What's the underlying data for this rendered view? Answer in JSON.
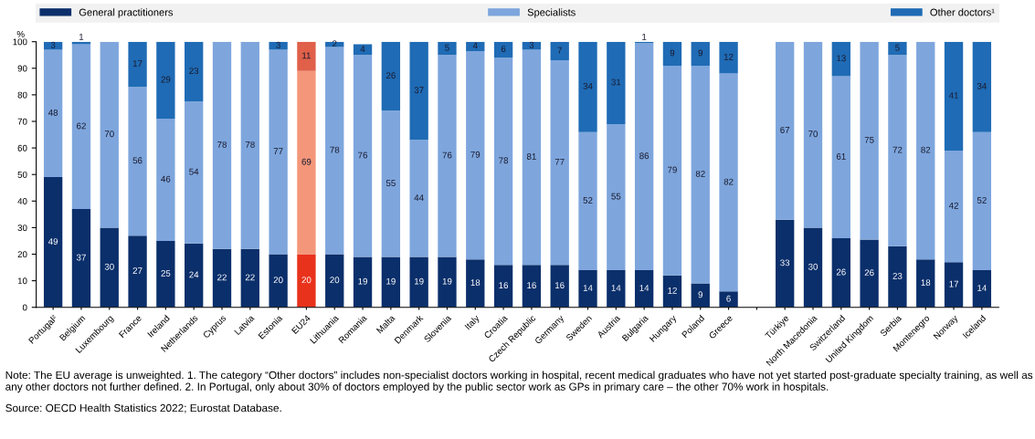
{
  "chart_data": {
    "type": "bar",
    "stacked": true,
    "ylabel": "%",
    "ylim": [
      0,
      100
    ],
    "yticks": [
      0,
      10,
      20,
      30,
      40,
      50,
      60,
      70,
      80,
      90,
      100
    ],
    "grid": false,
    "legend": "top",
    "categories": [
      "Portugal²",
      "Belgium",
      "Luxembourg",
      "France",
      "Ireland",
      "Netherlands",
      "Cyprus",
      "Latvia",
      "Estonia",
      "EU24",
      "Lithuania",
      "Romania",
      "Malta",
      "Denmark",
      "Slovenia",
      "Italy",
      "Croatia",
      "Czech Republic",
      "Germany",
      "Sweden",
      "Austria",
      "Bulgaria",
      "Hungary",
      "Poland",
      "Greece",
      null,
      "Türkiye",
      "North Macedonia",
      "Switzerland",
      "United Kingdom",
      "Serbia",
      "Montenegro",
      "Norway",
      "Iceland"
    ],
    "series": [
      {
        "name": "General practitioners",
        "color": "#0b2f6b",
        "colors": [
          "#0b2f6b",
          "#0b2f6b",
          "#0b2f6b",
          "#0b2f6b",
          "#0b2f6b",
          "#0b2f6b",
          "#0b2f6b",
          "#0b2f6b",
          "#0b2f6b",
          "#e8321c",
          "#0b2f6b",
          "#0b2f6b",
          "#0b2f6b",
          "#0b2f6b",
          "#0b2f6b",
          "#0b2f6b",
          "#0b2f6b",
          "#0b2f6b",
          "#0b2f6b",
          "#0b2f6b",
          "#0b2f6b",
          "#0b2f6b",
          "#0b2f6b",
          "#0b2f6b",
          "#0b2f6b",
          "#0b2f6b",
          "#0b2f6b",
          "#0b2f6b",
          "#0b2f6b",
          "#0b2f6b",
          "#0b2f6b",
          "#0b2f6b",
          "#0b2f6b",
          "#0b2f6b"
        ],
        "values": [
          49,
          37,
          30,
          27,
          25,
          24,
          22,
          22,
          20,
          20,
          20,
          19,
          19,
          19,
          19,
          18,
          16,
          16,
          16,
          14,
          14,
          14,
          12,
          9,
          6,
          null,
          33,
          30,
          26,
          25.5,
          23,
          18,
          17,
          14
        ],
        "value_labels": [
          "49",
          "37",
          "30",
          "27",
          "25",
          "24",
          "22",
          "22",
          "20",
          "20",
          "20",
          "19",
          "19",
          "19",
          "19",
          "18",
          "16",
          "16",
          "16",
          "14",
          "14",
          "14",
          "12",
          "9",
          "6",
          null,
          "33",
          "30",
          "26",
          "26",
          "23",
          "18",
          "17",
          "14"
        ]
      },
      {
        "name": "Specialists",
        "color": "#7ea6dd",
        "colors": [
          "#7ea6dd",
          "#7ea6dd",
          "#7ea6dd",
          "#7ea6dd",
          "#7ea6dd",
          "#7ea6dd",
          "#7ea6dd",
          "#7ea6dd",
          "#7ea6dd",
          "#f4967a",
          "#7ea6dd",
          "#7ea6dd",
          "#7ea6dd",
          "#7ea6dd",
          "#7ea6dd",
          "#7ea6dd",
          "#7ea6dd",
          "#7ea6dd",
          "#7ea6dd",
          "#7ea6dd",
          "#7ea6dd",
          "#7ea6dd",
          "#7ea6dd",
          "#7ea6dd",
          "#7ea6dd",
          "#7ea6dd",
          "#7ea6dd",
          "#7ea6dd",
          "#7ea6dd",
          "#7ea6dd",
          "#7ea6dd",
          "#7ea6dd",
          "#7ea6dd",
          "#7ea6dd"
        ],
        "values": [
          48,
          62,
          70,
          56,
          46,
          53.5,
          78,
          78,
          77,
          69,
          78,
          76,
          55,
          44,
          76,
          78.5,
          78,
          81,
          77,
          52,
          55,
          85.5,
          79,
          82,
          82,
          null,
          67,
          70,
          61,
          74.5,
          72,
          82,
          42,
          52
        ],
        "value_labels": [
          "48",
          "62",
          "70",
          "56",
          "46",
          "54",
          "78",
          "78",
          "77",
          "69",
          "78",
          "76",
          "55",
          "44",
          "76",
          "79",
          "78",
          "81",
          "77",
          "52",
          "55",
          "86",
          "79",
          "82",
          "82",
          null,
          "67",
          "70",
          "61",
          "75",
          "72",
          "82",
          "42",
          "52"
        ]
      },
      {
        "name": "Other doctors¹",
        "color": "#1f6bb5",
        "colors": [
          "#1f6bb5",
          "#1f6bb5",
          "#1f6bb5",
          "#1f6bb5",
          "#1f6bb5",
          "#1f6bb5",
          "#1f6bb5",
          "#1f6bb5",
          "#1f6bb5",
          "#e0604a",
          "#1f6bb5",
          "#1f6bb5",
          "#1f6bb5",
          "#1f6bb5",
          "#1f6bb5",
          "#1f6bb5",
          "#1f6bb5",
          "#1f6bb5",
          "#1f6bb5",
          "#1f6bb5",
          "#1f6bb5",
          "#1f6bb5",
          "#1f6bb5",
          "#1f6bb5",
          "#1f6bb5",
          "#1f6bb5",
          "#1f6bb5",
          "#1f6bb5",
          "#1f6bb5",
          "#1f6bb5",
          "#1f6bb5",
          "#1f6bb5",
          "#1f6bb5",
          "#1f6bb5"
        ],
        "values": [
          3,
          1,
          0,
          17,
          29,
          22.5,
          0,
          0,
          3,
          11,
          2,
          4,
          26,
          37,
          5,
          3.5,
          6,
          3,
          7,
          34,
          31,
          0.5,
          9,
          9,
          12,
          null,
          0,
          0,
          13,
          0,
          5,
          0,
          41,
          34
        ],
        "value_labels": [
          "3",
          "1",
          null,
          "17",
          "29",
          "23",
          null,
          null,
          "3",
          "11",
          "2",
          "4",
          "26",
          "37",
          "5",
          "4",
          "6",
          "3",
          "7",
          "34",
          "31",
          "1",
          "9",
          "9",
          "12",
          null,
          null,
          null,
          "13",
          null,
          "5",
          null,
          "41",
          "34"
        ]
      }
    ],
    "annotations": [
      "Note: The EU average is unweighted. 1. The category “Other doctors” includes non-specialist doctors working in hospital, recent medical graduates who have not yet started post-graduate specialty training, as well as any other doctors not further defined. 2. In Portugal, only about 30% of doctors employed by the public sector work as GPs in primary care – the other 70% work in hospitals.",
      "Source: OECD Health Statistics 2022; Eurostat Database."
    ]
  }
}
